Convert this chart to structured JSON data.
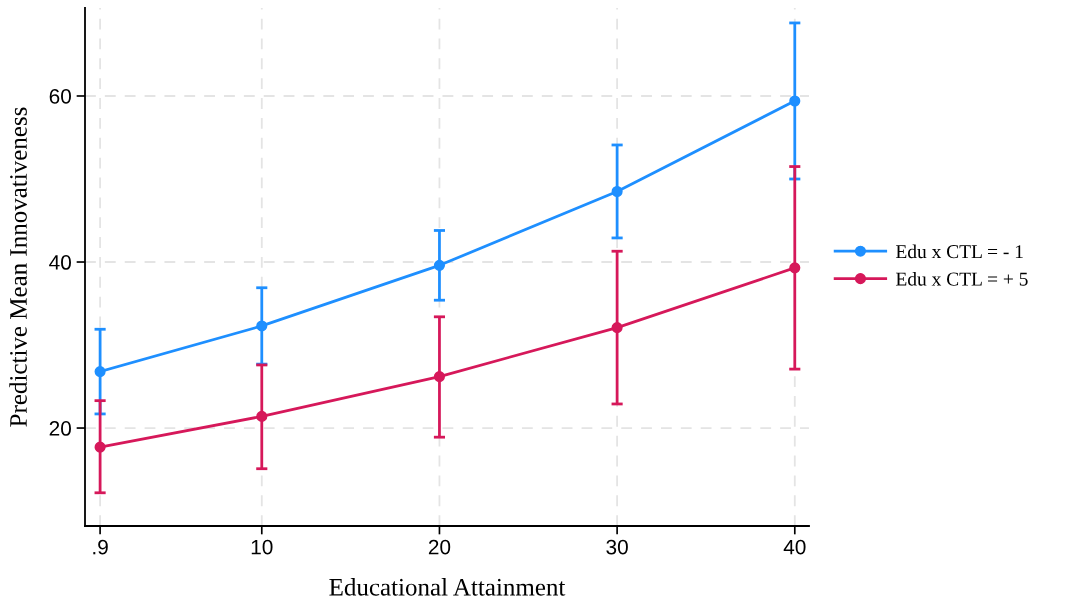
{
  "chart_data": {
    "type": "line",
    "xlabel": "Educational Attainment",
    "ylabel": "Predictive Mean Innovativeness",
    "x": [
      0.9,
      10,
      20,
      30,
      40
    ],
    "series": [
      {
        "name": "Edu x CTL = - 1",
        "color": "#1e8fff",
        "values": [
          26.8,
          32.3,
          39.6,
          48.5,
          59.4
        ],
        "errors": [
          [
            21.7,
            31.9
          ],
          [
            27.7,
            36.9
          ],
          [
            35.4,
            43.8
          ],
          [
            42.9,
            54.1
          ],
          [
            50.0,
            68.8
          ]
        ]
      },
      {
        "name": "Edu x CTL = + 5",
        "color": "#d6185a",
        "values": [
          17.7,
          21.4,
          26.2,
          32.1,
          39.3
        ],
        "errors": [
          [
            12.2,
            23.3
          ],
          [
            15.1,
            27.6
          ],
          [
            18.9,
            33.4
          ],
          [
            22.9,
            41.3
          ],
          [
            27.1,
            51.5
          ]
        ]
      }
    ],
    "xlim": [
      0.05,
      40.8
    ],
    "xticks": [
      {
        "value": 0.9,
        "label": ".9"
      },
      10,
      20,
      30,
      40
    ],
    "ylim": [
      8.2,
      70.6
    ],
    "yticks": [
      20,
      40,
      60
    ],
    "grid": true,
    "legend": "right",
    "marker": "circle",
    "line_style": "solid"
  }
}
